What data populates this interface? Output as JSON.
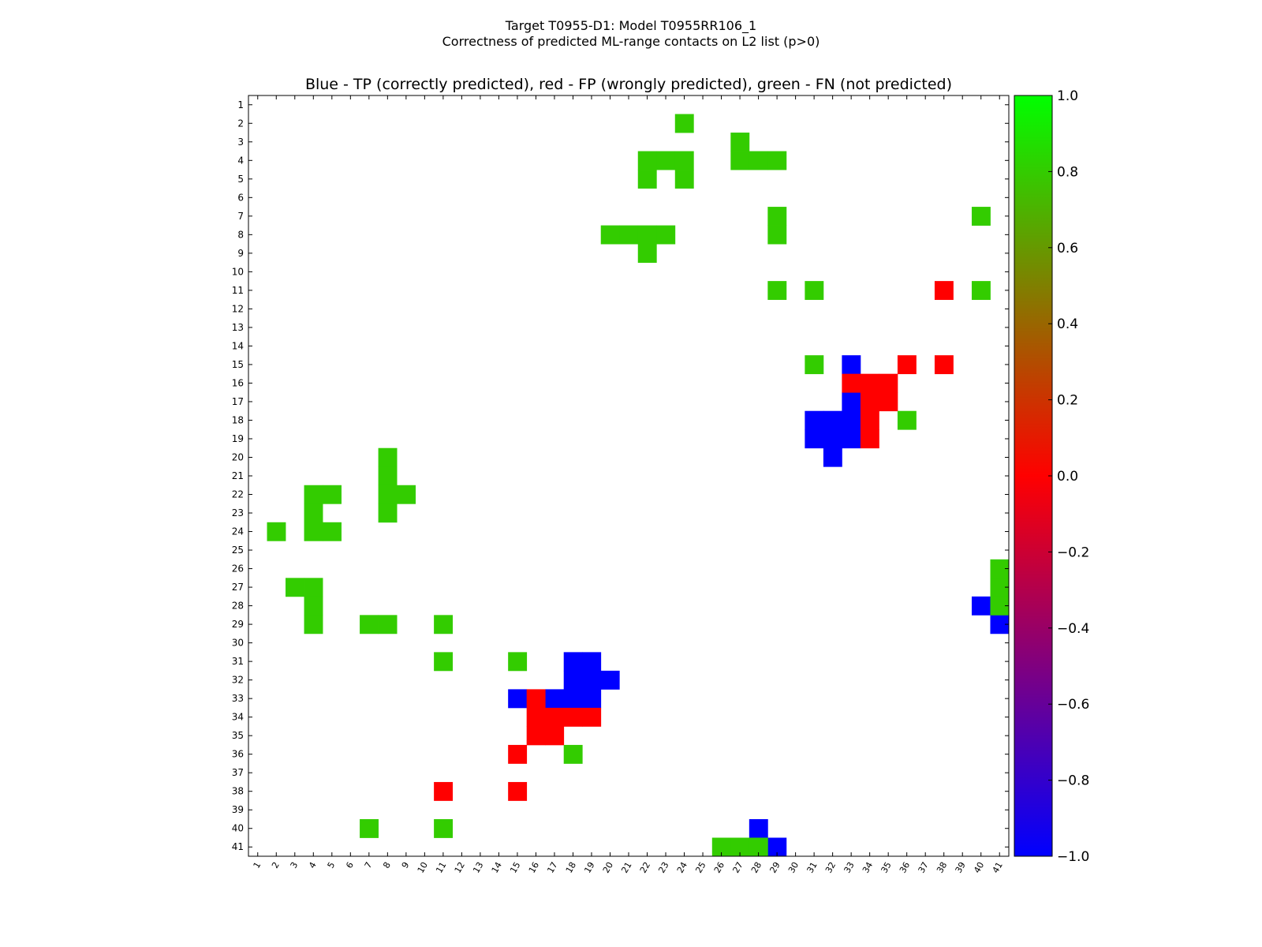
{
  "chart_data": {
    "type": "heatmap",
    "suptitle_line1": "Target T0955-D1: Model T0955RR106_1",
    "suptitle_line2": "Correctness of predicted ML-range contacts on L2 list (p>0)",
    "title": "Blue - TP (correctly predicted), red - FP (wrongly predicted), green - FN (not predicted)",
    "x_ticks": [
      "1",
      "2",
      "3",
      "4",
      "5",
      "6",
      "7",
      "8",
      "9",
      "10",
      "11",
      "12",
      "13",
      "14",
      "15",
      "16",
      "17",
      "18",
      "19",
      "20",
      "21",
      "22",
      "23",
      "24",
      "25",
      "26",
      "27",
      "28",
      "29",
      "30",
      "31",
      "32",
      "33",
      "34",
      "35",
      "36",
      "37",
      "38",
      "39",
      "40",
      "41"
    ],
    "y_ticks": [
      "1",
      "2",
      "3",
      "4",
      "5",
      "6",
      "7",
      "8",
      "9",
      "10",
      "11",
      "12",
      "13",
      "14",
      "15",
      "16",
      "17",
      "18",
      "19",
      "20",
      "21",
      "22",
      "23",
      "24",
      "25",
      "26",
      "27",
      "28",
      "29",
      "30",
      "31",
      "32",
      "33",
      "34",
      "35",
      "36",
      "37",
      "38",
      "39",
      "40",
      "41"
    ],
    "grid_size": 41,
    "value_legend": {
      "tp": -1.0,
      "fp": 0.0,
      "fn": 0.8
    },
    "colors": {
      "tp": "#0000ff",
      "fp": "#ff0000",
      "fn": "#33cc00"
    },
    "colorbar": {
      "min": -1.0,
      "max": 1.0,
      "ticks": [
        "1.0",
        "0.8",
        "0.6",
        "0.4",
        "0.2",
        "0.0",
        "−0.2",
        "−0.4",
        "−0.6",
        "−0.8",
        "−1.0"
      ],
      "stops": [
        {
          "value": -1.0,
          "color": "#0000ff"
        },
        {
          "value": 0.0,
          "color": "#ff0000"
        },
        {
          "value": 1.0,
          "color": "#00ff00"
        }
      ]
    },
    "tp": [
      [
        15,
        33
      ],
      [
        17,
        33
      ],
      [
        18,
        31
      ],
      [
        18,
        32
      ],
      [
        18,
        33
      ],
      [
        19,
        31
      ],
      [
        19,
        32
      ],
      [
        19,
        33
      ],
      [
        20,
        32
      ],
      [
        28,
        40
      ],
      [
        29,
        41
      ],
      [
        31,
        18
      ],
      [
        31,
        19
      ],
      [
        32,
        18
      ],
      [
        32,
        19
      ],
      [
        32,
        20
      ],
      [
        33,
        15
      ],
      [
        33,
        17
      ],
      [
        33,
        18
      ],
      [
        33,
        19
      ],
      [
        40,
        28
      ],
      [
        41,
        29
      ]
    ],
    "fp": [
      [
        11,
        38
      ],
      [
        15,
        36
      ],
      [
        15,
        38
      ],
      [
        16,
        33
      ],
      [
        16,
        34
      ],
      [
        16,
        35
      ],
      [
        17,
        34
      ],
      [
        17,
        35
      ],
      [
        18,
        34
      ],
      [
        19,
        34
      ],
      [
        33,
        16
      ],
      [
        34,
        16
      ],
      [
        34,
        17
      ],
      [
        34,
        18
      ],
      [
        34,
        19
      ],
      [
        35,
        16
      ],
      [
        35,
        17
      ],
      [
        36,
        15
      ],
      [
        38,
        11
      ],
      [
        38,
        15
      ]
    ],
    "fn": [
      [
        2,
        24
      ],
      [
        3,
        27
      ],
      [
        4,
        22
      ],
      [
        4,
        23
      ],
      [
        4,
        24
      ],
      [
        4,
        27
      ],
      [
        4,
        28
      ],
      [
        4,
        29
      ],
      [
        5,
        22
      ],
      [
        5,
        24
      ],
      [
        7,
        29
      ],
      [
        7,
        40
      ],
      [
        8,
        20
      ],
      [
        8,
        21
      ],
      [
        8,
        22
      ],
      [
        8,
        23
      ],
      [
        8,
        29
      ],
      [
        9,
        22
      ],
      [
        11,
        29
      ],
      [
        11,
        31
      ],
      [
        11,
        40
      ],
      [
        15,
        31
      ],
      [
        18,
        36
      ],
      [
        20,
        8
      ],
      [
        21,
        8
      ],
      [
        22,
        4
      ],
      [
        22,
        5
      ],
      [
        22,
        8
      ],
      [
        22,
        9
      ],
      [
        23,
        4
      ],
      [
        23,
        8
      ],
      [
        24,
        2
      ],
      [
        24,
        4
      ],
      [
        24,
        5
      ],
      [
        26,
        41
      ],
      [
        27,
        3
      ],
      [
        27,
        4
      ],
      [
        27,
        41
      ],
      [
        28,
        4
      ],
      [
        28,
        41
      ],
      [
        29,
        4
      ],
      [
        29,
        7
      ],
      [
        29,
        8
      ],
      [
        29,
        11
      ],
      [
        31,
        11
      ],
      [
        31,
        15
      ],
      [
        36,
        18
      ],
      [
        40,
        7
      ],
      [
        40,
        11
      ],
      [
        41,
        26
      ],
      [
        41,
        27
      ],
      [
        41,
        28
      ]
    ]
  }
}
